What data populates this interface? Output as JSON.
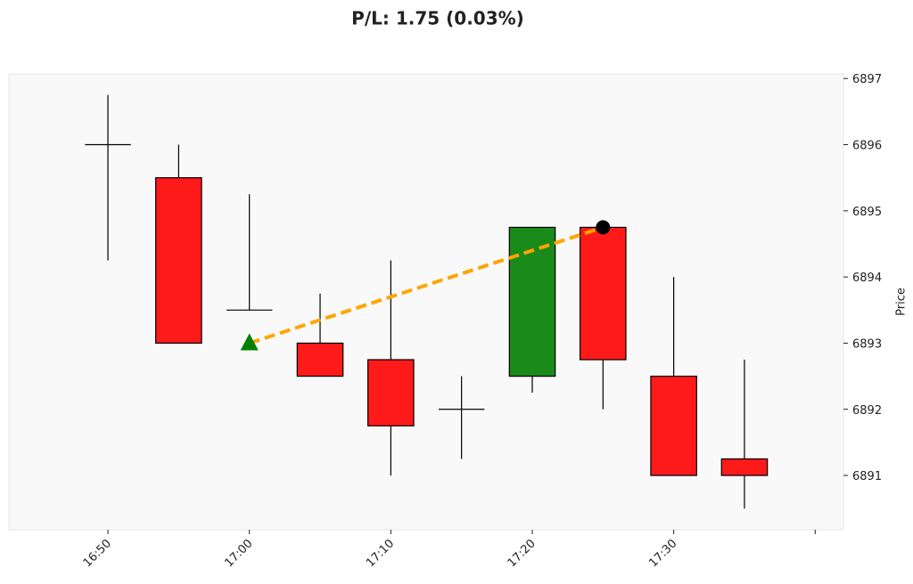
{
  "chart_data": {
    "type": "candlestick",
    "title": "P/L: 1.75 (0.03%)",
    "y_label": "Price",
    "x": [
      "16:50",
      "16:55",
      "17:00",
      "17:05",
      "17:10",
      "17:15",
      "17:20",
      "17:25",
      "17:30",
      "17:35"
    ],
    "open": [
      6896,
      6895.5,
      6893.5,
      6893,
      6892.75,
      6892,
      6892.5,
      6894.75,
      6892.5,
      6891.25
    ],
    "high": [
      6896.75,
      6896,
      6895.25,
      6893.75,
      6894.25,
      6892.5,
      6894.75,
      6894.75,
      6894,
      6892.75
    ],
    "low": [
      6894.25,
      6893,
      6893.5,
      6892.5,
      6891,
      6891.25,
      6892.25,
      6892,
      6891,
      6890.5
    ],
    "close": [
      6896,
      6893,
      6893.5,
      6892.5,
      6891.75,
      6892,
      6894.75,
      6892.75,
      6891,
      6891
    ],
    "up_color": "#1a8a1a",
    "down_color": "#ff1a1a",
    "trade_line_color": "#ffa500",
    "entry": {
      "x": "17:00",
      "y": 6893,
      "color": "#008000"
    },
    "exit": {
      "x": "17:25",
      "y": 6894.75,
      "color": "#000000"
    },
    "xlim": [
      "16:43",
      "17:42"
    ],
    "xticks": [
      "16:50",
      "17:00",
      "17:10",
      "17:20",
      "17:30",
      {
        "value": "17:40"
      }
    ],
    "ylim": [
      6890.18,
      6897.07
    ],
    "yticks": [
      6891,
      6892,
      6893,
      6894,
      6895,
      6896,
      6897
    ]
  }
}
